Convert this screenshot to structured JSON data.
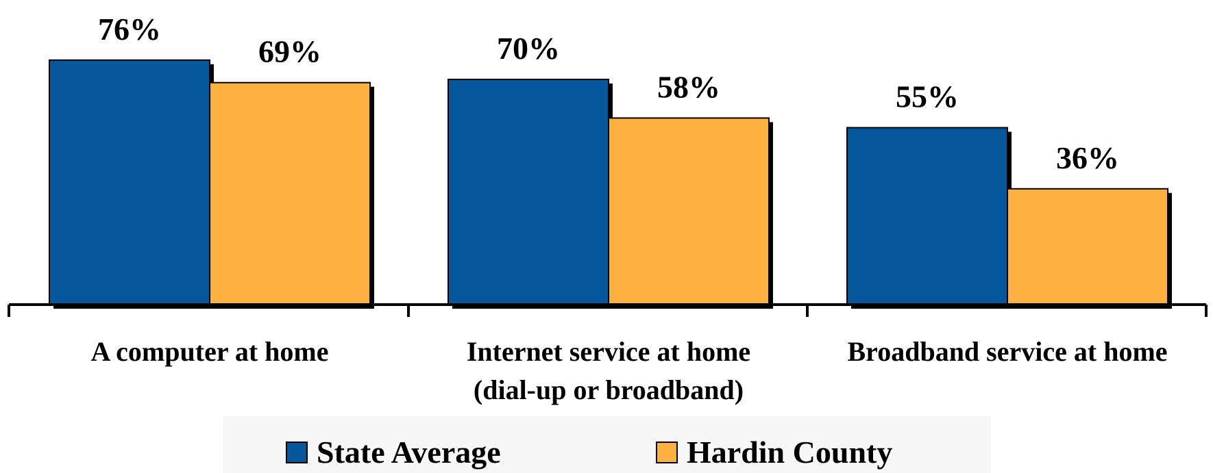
{
  "chart_data": {
    "type": "bar",
    "categories": [
      [
        "A computer at home"
      ],
      [
        "Internet service at home",
        "(dial-up or broadband)"
      ],
      [
        "Broadband service at home"
      ]
    ],
    "series": [
      {
        "name": "State Average",
        "color": "#03579A",
        "values": [
          76,
          70,
          55
        ],
        "labels": [
          "76%",
          "70%",
          "55%"
        ]
      },
      {
        "name": "Hardin County",
        "color": "#FBB040",
        "values": [
          69,
          58,
          36
        ],
        "labels": [
          "69%",
          "58%",
          "36%"
        ]
      }
    ],
    "ylim": [
      0,
      100
    ],
    "grid": false,
    "legend_position": "bottom"
  }
}
